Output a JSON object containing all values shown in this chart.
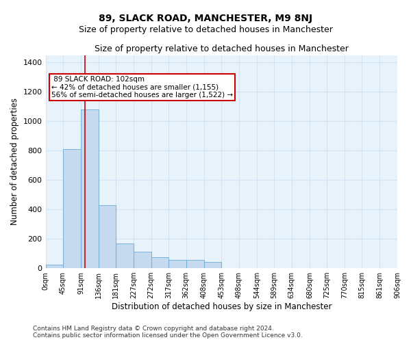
{
  "title": "89, SLACK ROAD, MANCHESTER, M9 8NJ",
  "subtitle": "Size of property relative to detached houses in Manchester",
  "xlabel": "Distribution of detached houses by size in Manchester",
  "ylabel": "Number of detached properties",
  "property_label": "89 SLACK ROAD: 102sqm",
  "pct_smaller": 42,
  "n_smaller": 1155,
  "pct_larger": 56,
  "n_larger": 1522,
  "bar_bins": [
    0,
    45,
    91,
    136,
    181,
    227,
    272,
    317,
    362,
    408,
    453,
    498,
    544,
    589,
    634,
    680,
    725,
    770,
    815,
    861,
    906
  ],
  "bar_heights": [
    25,
    810,
    1080,
    430,
    170,
    110,
    75,
    55,
    55,
    40,
    0,
    0,
    0,
    0,
    0,
    0,
    0,
    0,
    0,
    0
  ],
  "bar_color": "#c5d9ef",
  "bar_edge_color": "#6aaad4",
  "vline_x": 102,
  "vline_color": "#cc0000",
  "ylim": [
    0,
    1450
  ],
  "yticks": [
    0,
    200,
    400,
    600,
    800,
    1000,
    1200,
    1400
  ],
  "annotation_edge": "#cc0000",
  "grid_color": "#d0e4f5",
  "bg_color": "#e8f2fb",
  "footer": "Contains HM Land Registry data © Crown copyright and database right 2024.\nContains public sector information licensed under the Open Government Licence v3.0.",
  "title_fontsize": 10,
  "subtitle_fontsize": 9,
  "xlabel_fontsize": 8.5,
  "ylabel_fontsize": 8.5,
  "footer_fontsize": 6.5
}
